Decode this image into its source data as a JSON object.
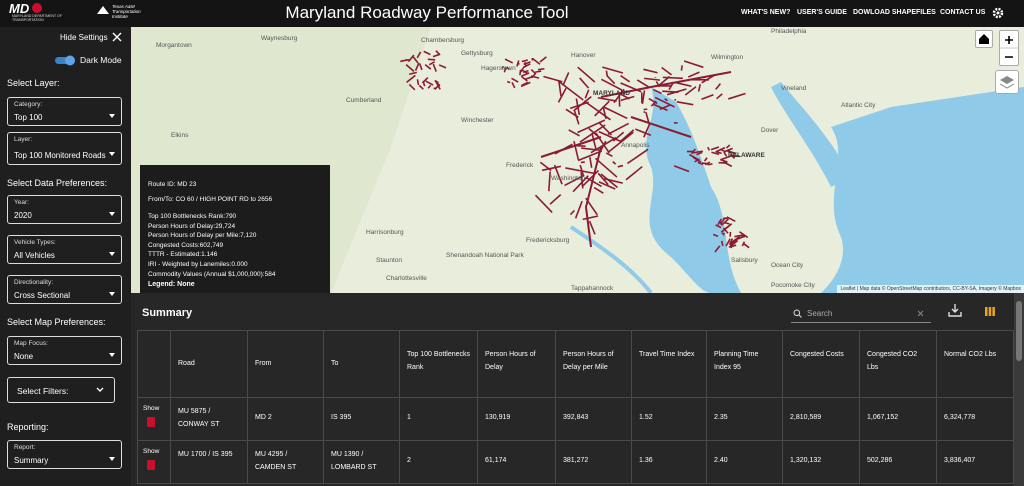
{
  "header": {
    "logo_mdot": "MARYLAND DEPARTMENT OF TRANSPORTATION",
    "logo_tti": "Texas A&M Transportation Institute",
    "title": "Maryland Roadway Performance Tool",
    "nav": [
      "WHAT'S NEW?",
      "USER'S GUIDE",
      "DOWLOAD SHAPEFILES",
      "CONTACT US"
    ]
  },
  "sidebar": {
    "hide_settings": "Hide Settings",
    "dark_mode": "Dark Mode",
    "select_layer": "Select Layer:",
    "category": {
      "label": "Category:",
      "value": "Top 100"
    },
    "layer": {
      "label": "Layer:",
      "value": "Top 100 Monitored Roads"
    },
    "select_data_preferences": "Select Data Preferences:",
    "year": {
      "label": "Year:",
      "value": "2020"
    },
    "vehicle_types": {
      "label": "Vehicle Types:",
      "value": "All Vehicles"
    },
    "directionality": {
      "label": "Directionality:",
      "value": "Cross Sectional"
    },
    "select_map_preferences": "Select Map Preferences:",
    "map_focus": {
      "label": "Map Focus:",
      "value": "None"
    },
    "select_filters": "Select Filters:",
    "reporting": "Reporting:",
    "report": {
      "label": "Report:",
      "value": "Summary"
    }
  },
  "map": {
    "labels": [
      "Waynesburg",
      "Chambersburg",
      "Gettysburg",
      "Hanover",
      "Philadelphia",
      "Cumberland",
      "Hagerstown",
      "Wilmington",
      "Vineland",
      "MARYLAND",
      "Frederick",
      "Washington",
      "DELAWARE",
      "Dover",
      "Atlantic City",
      "Harrisonburg",
      "Shenandoah National Park",
      "Fredericksburg",
      "Salisbury",
      "Ocean City",
      "Staunton",
      "Charlottesville",
      "Pocomoke City",
      "Tappahannock",
      "Morgantown",
      "Elkins",
      "Winchester",
      "Annapolis"
    ],
    "attribution": "Leaflet | Map data © OpenStreetMap contributors, CC-BY-SA, Imagery © Mapbox"
  },
  "popup": {
    "route_id": "Route ID: MD 23",
    "from_to": "From/To: CO 60 / HIGH POINT RD to 2656",
    "items": [
      "Top 100 Bottlenecks Rank:790",
      "Person Hours of Delay:29,724",
      "Person Hours of Delay per Mile:7,120",
      "Congested Costs:602,749",
      "TTTR - Estimated:1.146",
      "IRI - Weighted by Lanemiles:0.000",
      "Commodity Values (Annual $1,000,000):584"
    ],
    "legend": "Legend: None"
  },
  "summary": {
    "title": "Summary",
    "search_placeholder": "Search",
    "table": {
      "headers": [
        "Road",
        "From",
        "To",
        "Top 100 Bottlenecks Rank",
        "Person Hours of Delay",
        "Person Hours of Delay per Mile",
        "Travel Time Index",
        "Planning Time Index 95",
        "Congested Costs",
        "Congested CO2 Lbs",
        "Normal CO2 Lbs"
      ],
      "show": "Show",
      "rows": [
        [
          "MU 5875 / CONWAY ST",
          "MD 2",
          "IS 395",
          "1",
          "130,919",
          "392,843",
          "1.52",
          "2.35",
          "2,810,589",
          "1,067,152",
          "6,324,778"
        ],
        [
          "MU 1700 / IS 395",
          "MU 4295 / CAMDEN ST",
          "MU 1390 / LOMBARD ST",
          "2",
          "61,174",
          "381,272",
          "1.36",
          "2.40",
          "1,320,132",
          "502,286",
          "3,836,407"
        ]
      ]
    }
  }
}
